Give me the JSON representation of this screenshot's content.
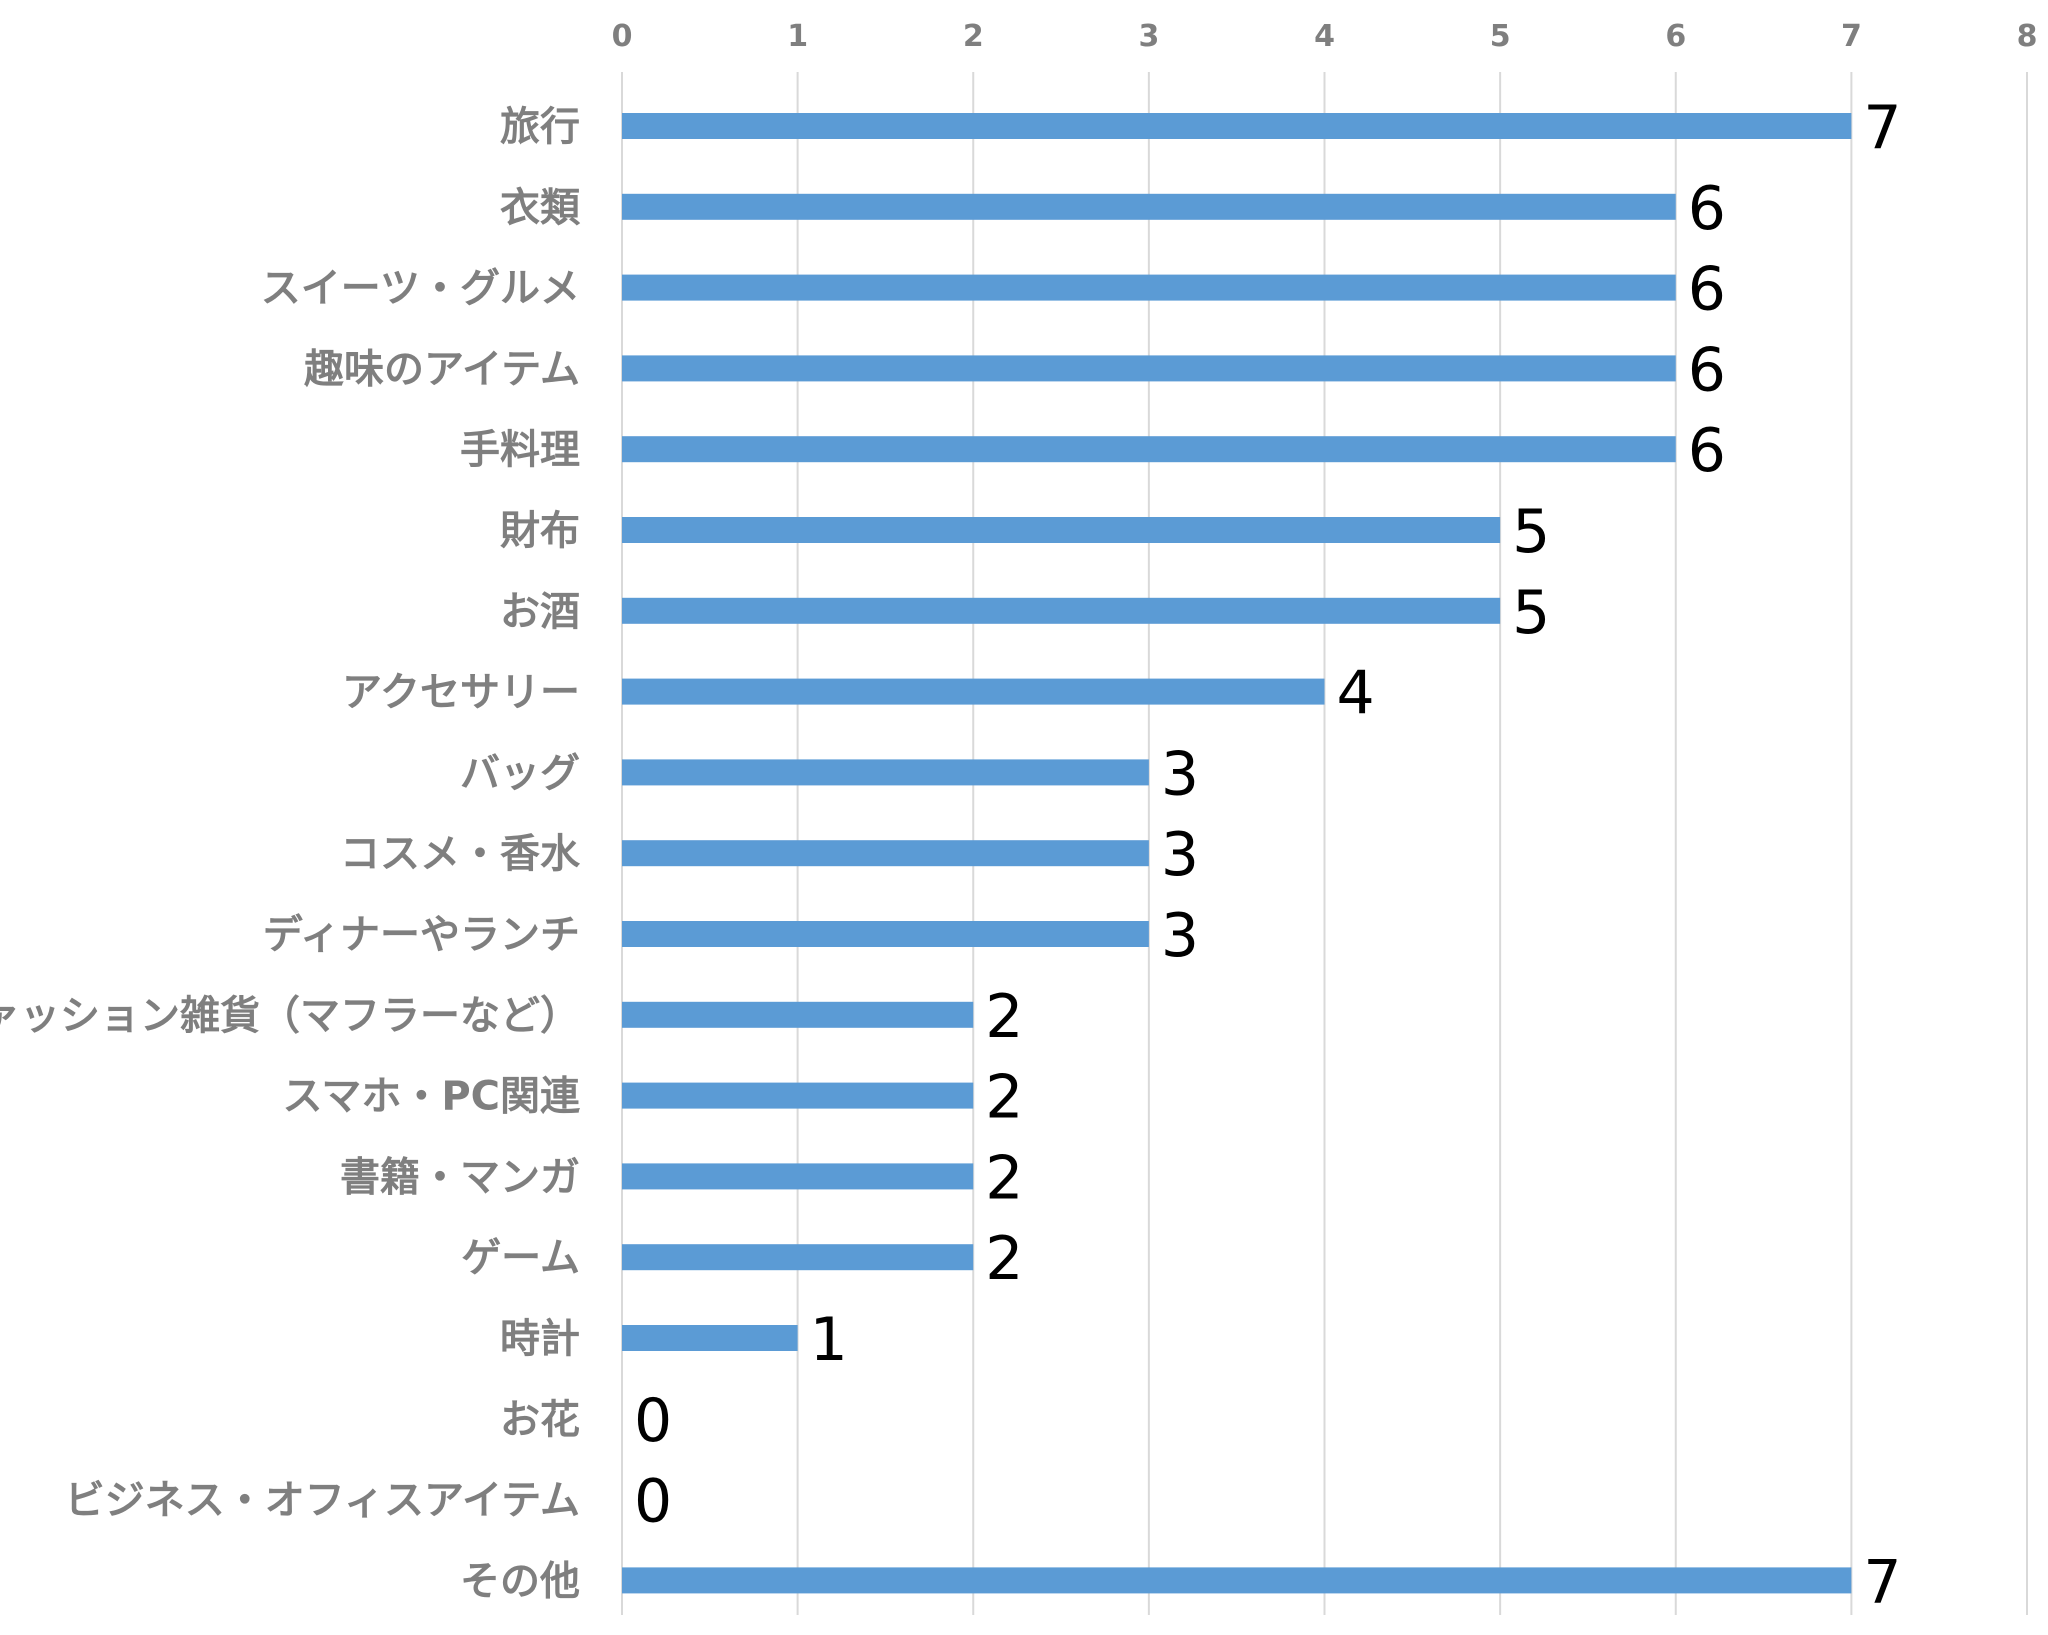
{
  "chart_data": {
    "type": "bar",
    "orientation": "horizontal",
    "title": "",
    "xlabel": "",
    "ylabel": "",
    "xlim": [
      0,
      8
    ],
    "xticks": [
      0,
      1,
      2,
      3,
      4,
      5,
      6,
      7,
      8
    ],
    "x_axis_position": "top",
    "grid": true,
    "legend": "none",
    "bar_color": "#5b9bd5",
    "categories": [
      "旅行",
      "衣類",
      "スイーツ・グルメ",
      "趣味のアイテム",
      "手料理",
      "財布",
      "お酒",
      "アクセサリー",
      "バッグ",
      "コスメ・香水",
      "ディナーやランチ",
      "ファッション雑貨（マフラーなど）",
      "スマホ・PC関連",
      "書籍・マンガ",
      "ゲーム",
      "時計",
      "お花",
      "ビジネス・オフィスアイテム",
      "その他"
    ],
    "values": [
      7,
      6,
      6,
      6,
      6,
      5,
      5,
      4,
      3,
      3,
      3,
      2,
      2,
      2,
      2,
      1,
      0,
      0,
      7
    ]
  }
}
